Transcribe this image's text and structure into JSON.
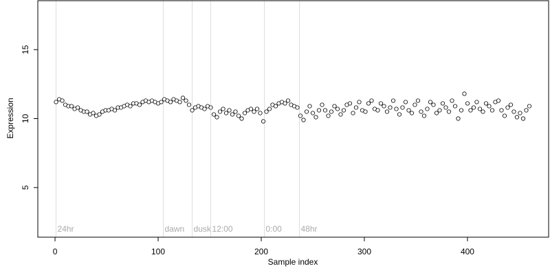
{
  "chart_data": {
    "type": "scatter",
    "xlabel": "Sample index",
    "ylabel": "Expression",
    "xlim": [
      -16.7,
      478.7
    ],
    "ylim": [
      1.4,
      18.55
    ],
    "xticks": [
      0,
      100,
      200,
      300,
      400
    ],
    "yticks": [
      5,
      10,
      15
    ],
    "point_fill": "#ffffff",
    "point_edge": "#000000",
    "annotation_color": "#aaaaaa",
    "annotation_line_color": "#dddddd",
    "annotations": [
      {
        "x": 1,
        "label": "24hr"
      },
      {
        "x": 105,
        "label": "dawn"
      },
      {
        "x": 133,
        "label": "dusk"
      },
      {
        "x": 151,
        "label": "12:00"
      },
      {
        "x": 203,
        "label": "0:00"
      },
      {
        "x": 237,
        "label": "48hr"
      }
    ],
    "x": [
      1,
      4,
      7,
      10,
      13,
      16,
      19,
      22,
      25,
      28,
      31,
      34,
      37,
      40,
      43,
      46,
      49,
      52,
      55,
      58,
      61,
      64,
      67,
      70,
      73,
      76,
      79,
      82,
      85,
      88,
      91,
      94,
      97,
      100,
      103,
      106,
      109,
      112,
      115,
      118,
      121,
      124,
      127,
      130,
      133,
      136,
      139,
      142,
      145,
      148,
      151,
      154,
      157,
      160,
      163,
      166,
      169,
      172,
      175,
      178,
      181,
      184,
      187,
      190,
      193,
      196,
      199,
      202,
      205,
      208,
      211,
      214,
      217,
      220,
      223,
      226,
      229,
      232,
      235,
      238,
      241,
      244,
      247,
      250,
      253,
      256,
      259,
      262,
      265,
      268,
      271,
      274,
      277,
      280,
      283,
      286,
      289,
      292,
      295,
      298,
      301,
      304,
      307,
      310,
      313,
      316,
      319,
      322,
      325,
      328,
      331,
      334,
      337,
      340,
      343,
      346,
      349,
      352,
      355,
      358,
      361,
      364,
      367,
      370,
      373,
      376,
      379,
      382,
      385,
      388,
      391,
      394,
      397,
      400,
      403,
      406,
      409,
      412,
      415,
      418,
      421,
      424,
      427,
      430,
      433,
      436,
      439,
      442,
      445,
      448,
      451,
      454,
      457,
      460
    ],
    "values": [
      11.2,
      11.4,
      11.3,
      11.0,
      10.9,
      10.9,
      10.7,
      10.8,
      10.6,
      10.5,
      10.5,
      10.3,
      10.4,
      10.2,
      10.3,
      10.5,
      10.6,
      10.6,
      10.7,
      10.6,
      10.8,
      10.8,
      10.9,
      11.0,
      10.9,
      11.1,
      11.1,
      11.0,
      11.2,
      11.3,
      11.2,
      11.3,
      11.2,
      11.1,
      11.2,
      11.4,
      11.3,
      11.2,
      11.4,
      11.3,
      11.2,
      11.5,
      11.3,
      11.0,
      10.6,
      10.8,
      10.9,
      10.8,
      10.7,
      10.9,
      10.8,
      10.3,
      10.1,
      10.5,
      10.7,
      10.4,
      10.6,
      10.3,
      10.5,
      10.2,
      10.0,
      10.4,
      10.6,
      10.7,
      10.5,
      10.7,
      10.4,
      9.8,
      10.5,
      10.7,
      11.0,
      10.9,
      11.1,
      11.2,
      11.1,
      11.3,
      11.0,
      10.9,
      10.8,
      10.2,
      9.9,
      10.5,
      10.9,
      10.4,
      10.1,
      10.6,
      11.0,
      10.6,
      10.2,
      10.5,
      10.9,
      10.7,
      10.3,
      10.6,
      11.0,
      11.1,
      10.4,
      10.8,
      11.2,
      10.6,
      10.5,
      11.1,
      11.3,
      10.7,
      10.6,
      11.1,
      10.9,
      10.5,
      10.8,
      11.3,
      10.7,
      10.3,
      10.8,
      11.2,
      10.6,
      10.4,
      11.0,
      11.3,
      10.5,
      10.2,
      10.7,
      11.2,
      11.0,
      10.4,
      10.6,
      11.1,
      10.8,
      10.5,
      11.3,
      10.9,
      10.0,
      10.6,
      11.8,
      11.1,
      10.6,
      10.8,
      11.2,
      10.7,
      10.5,
      11.1,
      10.9,
      10.6,
      11.2,
      11.3,
      10.6,
      10.2,
      10.8,
      11.0,
      10.5,
      10.1,
      10.4,
      10.0,
      10.6,
      10.9
    ]
  }
}
